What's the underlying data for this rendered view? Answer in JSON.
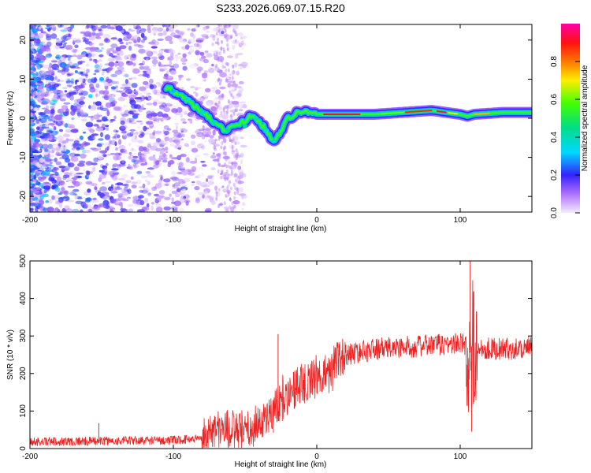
{
  "title": "S233.2026.069.07.15.R20",
  "chart_data": [
    {
      "type": "heatmap",
      "name": "spectrogram",
      "xlabel": "Height of straight line (km)",
      "ylabel": "Frequency (Hz)",
      "xlim": [
        -200,
        150
      ],
      "ylim": [
        -24,
        24
      ],
      "xticks": [
        -200,
        -100,
        0,
        100
      ],
      "xtick_labels": [
        "-200",
        "-100",
        "0",
        "100"
      ],
      "yticks": [
        -20,
        -10,
        0,
        10,
        20
      ],
      "ytick_labels": [
        "-20",
        "-10",
        "0",
        "10",
        "20"
      ],
      "colorbar": {
        "label": "Normalized spectral amplitude",
        "range": [
          0.0,
          1.0
        ],
        "ticks": [
          0.0,
          0.2,
          0.4,
          0.6,
          0.8
        ],
        "tick_labels": [
          "0.0",
          "0.2",
          "0.4",
          "0.6",
          "0.8"
        ],
        "colormap": "rainbow (white-violet-blue-cyan-green-yellow-orange-red-magenta)"
      },
      "ridge": {
        "x": [
          -105,
          -95,
          -85,
          -75,
          -65,
          -55,
          -45,
          -40,
          -35,
          -30,
          -20,
          -10,
          0,
          10,
          20,
          40,
          60,
          80,
          90,
          100,
          105,
          110,
          130,
          150
        ],
        "y": [
          8,
          6,
          3,
          0,
          -3,
          -2,
          1,
          -1,
          -3,
          -6,
          0,
          2,
          1,
          1,
          1,
          1,
          1.5,
          2,
          1.5,
          1,
          0.5,
          1,
          1.5,
          1.5
        ]
      }
    },
    {
      "type": "line",
      "name": "snr",
      "xlabel": "Height of straight line (km)",
      "ylabel": "SNR (10 * v/v)",
      "xlim": [
        -200,
        150
      ],
      "ylim": [
        0,
        500
      ],
      "xticks": [
        -200,
        -100,
        0,
        100
      ],
      "xtick_labels": [
        "-200",
        "-100",
        "0",
        "100"
      ],
      "yticks": [
        0,
        100,
        200,
        300,
        400,
        500
      ],
      "ytick_labels": [
        "0",
        "100",
        "200",
        "300",
        "400",
        "500"
      ],
      "color": "#ee2222",
      "envelope": {
        "x": [
          -200,
          -150,
          -100,
          -80,
          -70,
          -60,
          -50,
          -40,
          -30,
          -25,
          -20,
          -10,
          0,
          10,
          20,
          40,
          60,
          80,
          100,
          110,
          130,
          150
        ],
        "y": [
          18,
          20,
          22,
          28,
          55,
          50,
          40,
          70,
          100,
          130,
          150,
          175,
          190,
          210,
          250,
          265,
          270,
          275,
          280,
          270,
          265,
          270
        ]
      },
      "spikes": [
        {
          "x": -152,
          "y": 68
        },
        {
          "x": -27,
          "y": 305
        },
        {
          "x": 107,
          "y": 500
        },
        {
          "x": 108,
          "y": 45
        }
      ]
    }
  ]
}
